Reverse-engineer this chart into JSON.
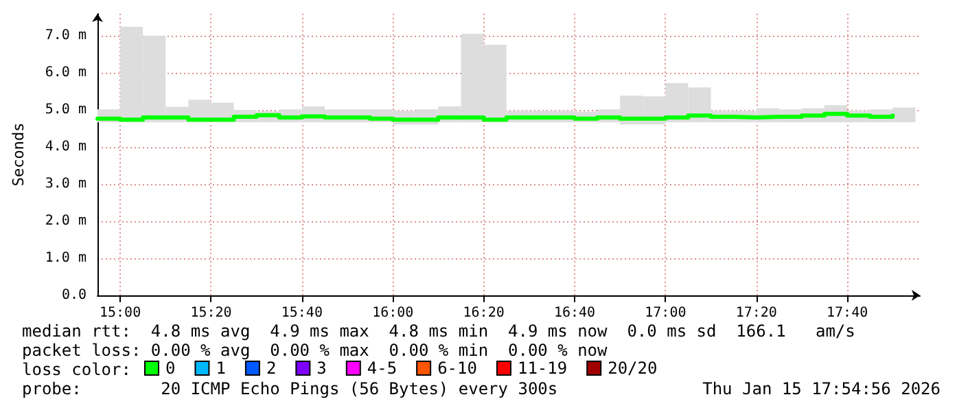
{
  "chart_data": {
    "type": "step",
    "ylabel": "Seconds",
    "legend_title": "loss color:",
    "legend": "bottom",
    "grid": true,
    "marker": "none",
    "line_style": "solid",
    "x": [
      "2026-01-15T14:55",
      "2026-01-15T15:00",
      "2026-01-15T15:05",
      "2026-01-15T15:10",
      "2026-01-15T15:15",
      "2026-01-15T15:20",
      "2026-01-15T15:25",
      "2026-01-15T15:30",
      "2026-01-15T15:35",
      "2026-01-15T15:40",
      "2026-01-15T15:45",
      "2026-01-15T15:50",
      "2026-01-15T15:55",
      "2026-01-15T16:00",
      "2026-01-15T16:05",
      "2026-01-15T16:10",
      "2026-01-15T16:15",
      "2026-01-15T16:20",
      "2026-01-15T16:25",
      "2026-01-15T16:30",
      "2026-01-15T16:35",
      "2026-01-15T16:40",
      "2026-01-15T16:45",
      "2026-01-15T16:50",
      "2026-01-15T16:55",
      "2026-01-15T17:00",
      "2026-01-15T17:05",
      "2026-01-15T17:10",
      "2026-01-15T17:15",
      "2026-01-15T17:20",
      "2026-01-15T17:25",
      "2026-01-15T17:30",
      "2026-01-15T17:35",
      "2026-01-15T17:40",
      "2026-01-15T17:45",
      "2026-01-15T17:50"
    ],
    "xlim": [
      "2026-01-15T14:55",
      "2026-01-15T17:56"
    ],
    "xticks": [
      {
        "value": "2026-01-15T15:00",
        "label": "15:00"
      },
      {
        "value": "2026-01-15T15:20",
        "label": "15:20"
      },
      {
        "value": "2026-01-15T15:40",
        "label": "15:40"
      },
      {
        "value": "2026-01-15T16:00",
        "label": "16:00"
      },
      {
        "value": "2026-01-15T16:20",
        "label": "16:20"
      },
      {
        "value": "2026-01-15T16:40",
        "label": "16:40"
      },
      {
        "value": "2026-01-15T17:00",
        "label": "17:00"
      },
      {
        "value": "2026-01-15T17:20",
        "label": "17:20"
      },
      {
        "value": "2026-01-15T17:40",
        "label": "17:40"
      }
    ],
    "ylim": [
      0,
      7.6
    ],
    "yticks": [
      {
        "value": 0,
        "label": "0.0"
      },
      {
        "value": 1,
        "label": "1.0 m"
      },
      {
        "value": 2,
        "label": "2.0 m"
      },
      {
        "value": 3,
        "label": "3.0 m"
      },
      {
        "value": 4,
        "label": "4.0 m"
      },
      {
        "value": 5,
        "label": "5.0 m"
      },
      {
        "value": 6,
        "label": "6.0 m"
      },
      {
        "value": 7,
        "label": "7.0 m"
      }
    ],
    "series": [
      {
        "type": "bar",
        "color": "#dddddd",
        "x": [
          "2026-01-15T14:57:30",
          "2026-01-15T15:02:30",
          "2026-01-15T15:07:30",
          "2026-01-15T15:12:30",
          "2026-01-15T15:17:30",
          "2026-01-15T15:22:30",
          "2026-01-15T15:27:30",
          "2026-01-15T15:32:30",
          "2026-01-15T15:37:30",
          "2026-01-15T15:42:30",
          "2026-01-15T15:47:30",
          "2026-01-15T15:52:30",
          "2026-01-15T15:57:30",
          "2026-01-15T16:02:30",
          "2026-01-15T16:07:30",
          "2026-01-15T16:12:30",
          "2026-01-15T16:17:30",
          "2026-01-15T16:22:30",
          "2026-01-15T16:27:30",
          "2026-01-15T16:32:30",
          "2026-01-15T16:37:30",
          "2026-01-15T16:42:30",
          "2026-01-15T16:47:30",
          "2026-01-15T16:52:30",
          "2026-01-15T16:57:30",
          "2026-01-15T17:02:30",
          "2026-01-15T17:07:30",
          "2026-01-15T17:12:30",
          "2026-01-15T17:17:30",
          "2026-01-15T17:22:30",
          "2026-01-15T17:27:30",
          "2026-01-15T17:32:30",
          "2026-01-15T17:37:30",
          "2026-01-15T17:42:30",
          "2026-01-15T17:47:30",
          "2026-01-15T17:52:30"
        ],
        "base": [
          4.67,
          4.67,
          4.67,
          4.67,
          4.67,
          4.67,
          4.67,
          4.67,
          4.67,
          4.67,
          4.67,
          4.67,
          4.67,
          4.61,
          4.61,
          4.67,
          4.67,
          4.67,
          4.67,
          4.67,
          4.67,
          4.67,
          4.67,
          4.61,
          4.61,
          4.67,
          4.67,
          4.67,
          4.67,
          4.67,
          4.67,
          4.67,
          4.67,
          4.67,
          4.67,
          4.67
        ],
        "values": [
          0.35,
          2.58,
          2.33,
          0.42,
          0.61,
          0.53,
          0.33,
          0.3,
          0.35,
          0.43,
          0.35,
          0.35,
          0.35,
          0.37,
          0.41,
          0.43,
          2.39,
          2.09,
          0.31,
          0.31,
          0.31,
          0.29,
          0.35,
          0.78,
          0.76,
          1.06,
          0.94,
          0.31,
          0.31,
          0.38,
          0.35,
          0.38,
          0.46,
          0.31,
          0.35,
          0.4
        ]
      },
      {
        "name": "0",
        "color": "#00ff00",
        "values": [
          4.77,
          4.74,
          4.8,
          4.8,
          4.74,
          4.74,
          4.82,
          4.86,
          4.8,
          4.83,
          4.8,
          4.8,
          4.77,
          4.74,
          4.74,
          4.8,
          4.8,
          4.74,
          4.8,
          4.8,
          4.8,
          4.77,
          4.8,
          4.77,
          4.77,
          4.8,
          4.85,
          4.82,
          4.8,
          4.82,
          4.82,
          4.85,
          4.9,
          4.85,
          4.82,
          4.85
        ]
      },
      {
        "name": "1",
        "color": "#00b8ff",
        "values": [
          null,
          null,
          null,
          null,
          null,
          null,
          null,
          null,
          null,
          null,
          null,
          null,
          null,
          null,
          null,
          null,
          null,
          null,
          null,
          null,
          null,
          null,
          null,
          null,
          null,
          null,
          null,
          null,
          null,
          null,
          null,
          null,
          null,
          null,
          null,
          null
        ]
      },
      {
        "name": "2",
        "color": "#0059ff",
        "values": [
          null,
          null,
          null,
          null,
          null,
          null,
          null,
          null,
          null,
          null,
          null,
          null,
          null,
          null,
          null,
          null,
          null,
          null,
          null,
          null,
          null,
          null,
          null,
          null,
          null,
          null,
          null,
          null,
          null,
          null,
          null,
          null,
          null,
          null,
          null,
          null
        ]
      },
      {
        "name": "3",
        "color": "#7e00ff",
        "values": [
          null,
          null,
          null,
          null,
          null,
          null,
          null,
          null,
          null,
          null,
          null,
          null,
          null,
          null,
          null,
          null,
          null,
          null,
          null,
          null,
          null,
          null,
          null,
          null,
          null,
          null,
          null,
          null,
          null,
          null,
          null,
          null,
          null,
          null,
          null,
          null
        ]
      },
      {
        "name": "4-5",
        "color": "#ff00ff",
        "values": [
          null,
          null,
          null,
          null,
          null,
          null,
          null,
          null,
          null,
          null,
          null,
          null,
          null,
          null,
          null,
          null,
          null,
          null,
          null,
          null,
          null,
          null,
          null,
          null,
          null,
          null,
          null,
          null,
          null,
          null,
          null,
          null,
          null,
          null,
          null,
          null
        ]
      },
      {
        "name": "6-10",
        "color": "#ff5500",
        "values": [
          null,
          null,
          null,
          null,
          null,
          null,
          null,
          null,
          null,
          null,
          null,
          null,
          null,
          null,
          null,
          null,
          null,
          null,
          null,
          null,
          null,
          null,
          null,
          null,
          null,
          null,
          null,
          null,
          null,
          null,
          null,
          null,
          null,
          null,
          null,
          null
        ]
      },
      {
        "name": "11-19",
        "color": "#ff0000",
        "values": [
          null,
          null,
          null,
          null,
          null,
          null,
          null,
          null,
          null,
          null,
          null,
          null,
          null,
          null,
          null,
          null,
          null,
          null,
          null,
          null,
          null,
          null,
          null,
          null,
          null,
          null,
          null,
          null,
          null,
          null,
          null,
          null,
          null,
          null,
          null,
          null
        ]
      },
      {
        "name": "20/20",
        "color": "#a10000",
        "values": [
          null,
          null,
          null,
          null,
          null,
          null,
          null,
          null,
          null,
          null,
          null,
          null,
          null,
          null,
          null,
          null,
          null,
          null,
          null,
          null,
          null,
          null,
          null,
          null,
          null,
          null,
          null,
          null,
          null,
          null,
          null,
          null,
          null,
          null,
          null,
          null
        ]
      }
    ],
    "annotations": [
      "median rtt:  4.8 ms avg  4.9 ms max  4.8 ms min  4.9 ms now  0.0 ms sd  166.1   am/s",
      "packet loss: 0.00 % avg  0.00 % max  0.00 % min  0.00 % now",
      "probe:        20 ICMP Echo Pings (56 Bytes) every 300s",
      "Thu Jan 15 17:54:56 2026"
    ]
  }
}
